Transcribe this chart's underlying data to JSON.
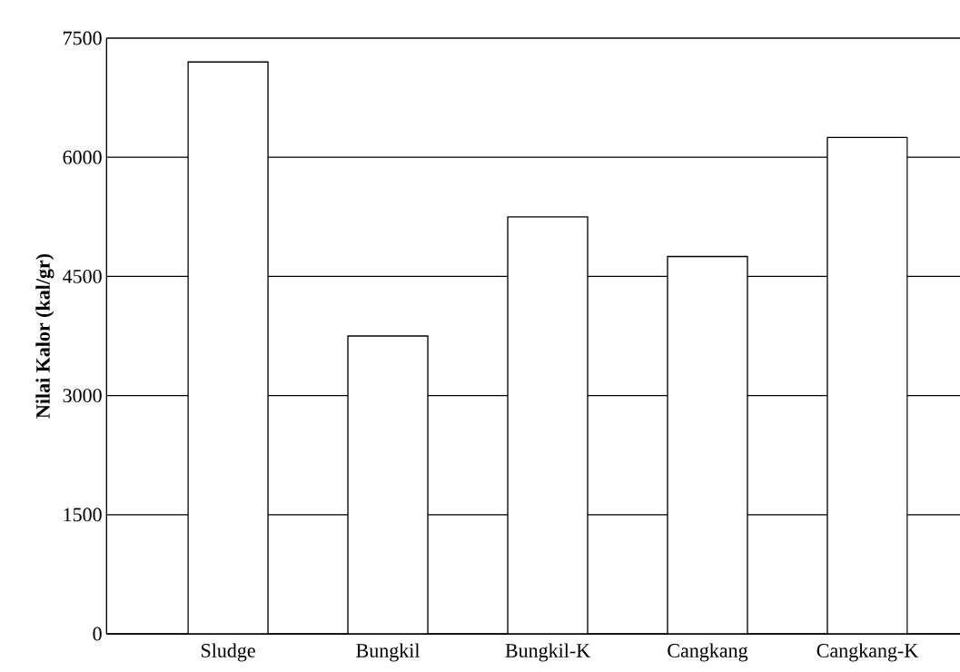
{
  "chart_data": {
    "type": "bar",
    "ylabel": "Nilai Kalor (kal/gr)",
    "categories": [
      "Sludge",
      "Bungkil",
      "Bungkil-K",
      "Cangkang",
      "Cangkang-K"
    ],
    "values": [
      7200,
      3750,
      5250,
      4750,
      6250
    ],
    "color": "#ffffff",
    "ylim": [
      0,
      7500
    ],
    "yticks": [
      0,
      1500,
      3000,
      4500,
      6000,
      7500
    ],
    "grid": "y"
  }
}
